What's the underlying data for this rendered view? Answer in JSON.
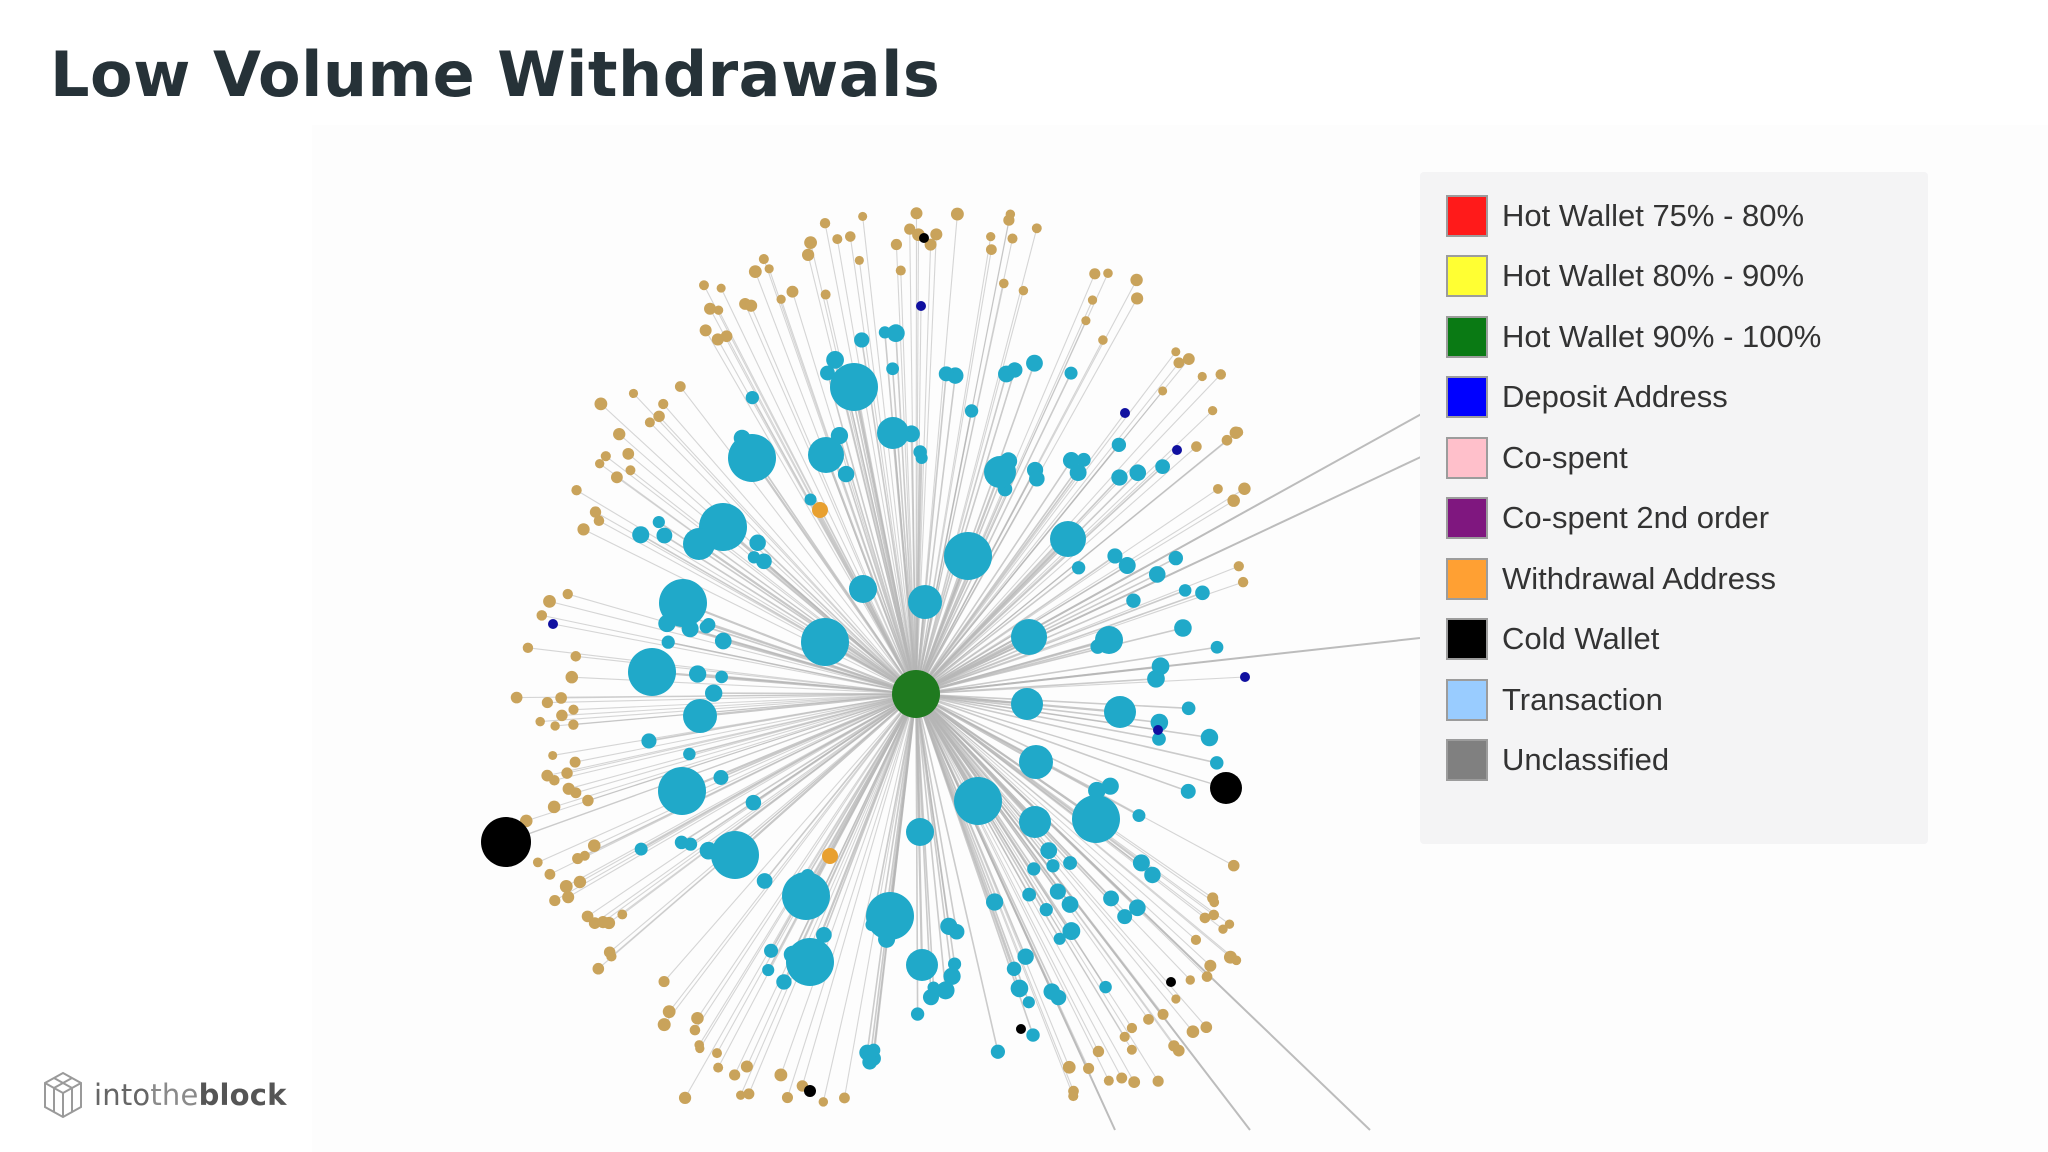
{
  "slide": {
    "title": "Low Volume Withdrawals"
  },
  "legend": {
    "items": [
      {
        "label": "Hot Wallet 75% - 80%",
        "color": "#ff1a1a"
      },
      {
        "label": "Hot Wallet 80% - 90%",
        "color": "#ffff33"
      },
      {
        "label": "Hot Wallet 90% - 100%",
        "color": "#0a7a14"
      },
      {
        "label": "Deposit Address",
        "color": "#0000ff"
      },
      {
        "label": "Co-spent",
        "color": "#ffc0cb"
      },
      {
        "label": "Co-spent 2nd order",
        "color": "#7f177f"
      },
      {
        "label": "Withdrawal Address",
        "color": "#ffa033"
      },
      {
        "label": "Cold Wallet",
        "color": "#000000"
      },
      {
        "label": "Transaction",
        "color": "#99ccff"
      },
      {
        "label": "Unclassified",
        "color": "#808080"
      }
    ]
  },
  "graph": {
    "hub_color": "#1f7a1f",
    "transaction_color": "#20a9c9",
    "unclassified_color": "#c9a35b",
    "deposit_color": "#1010a0",
    "cold_color": "#000000",
    "withdrawal_color": "#e8a030",
    "edge_color": "#b5b5b5"
  },
  "brand": {
    "part1": "into",
    "part2": "the",
    "part3": "block",
    "icon": "cube-logo-icon"
  }
}
